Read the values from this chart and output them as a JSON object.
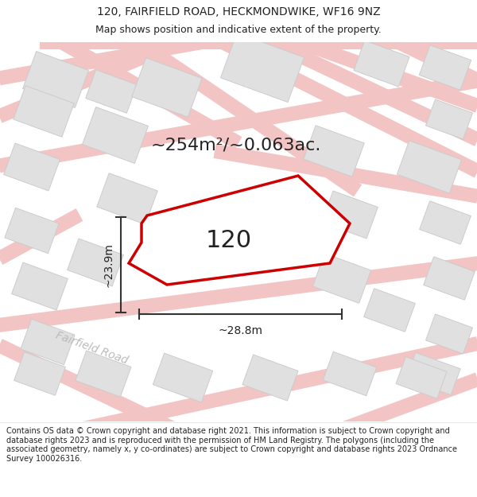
{
  "title_line1": "120, FAIRFIELD ROAD, HECKMONDWIKE, WF16 9NZ",
  "title_line2": "Map shows position and indicative extent of the property.",
  "area_text": "~254m²/~0.063ac.",
  "house_number": "120",
  "width_label": "~28.8m",
  "height_label": "~23.9m",
  "road_label": "Fairfield Road",
  "footer_text": "Contains OS data © Crown copyright and database right 2021. This information is subject to Crown copyright and database rights 2023 and is reproduced with the permission of HM Land Registry. The polygons (including the associated geometry, namely x, y co-ordinates) are subject to Crown copyright and database rights 2023 Ordnance Survey 100026316.",
  "bg_color": "#ffffff",
  "road_color": "#f2c4c4",
  "building_fill": "#e0e0e0",
  "building_edge": "#cccccc",
  "highlight_color": "#cc0000",
  "text_color": "#222222",
  "dim_line_color": "#333333",
  "road_label_color": "#bbbbbb",
  "map_bg": "#ffffff",
  "title_fontsize": 10,
  "subtitle_fontsize": 9,
  "area_fontsize": 16,
  "number_fontsize": 22,
  "dim_fontsize": 10,
  "road_fontsize": 10,
  "footer_fontsize": 7
}
